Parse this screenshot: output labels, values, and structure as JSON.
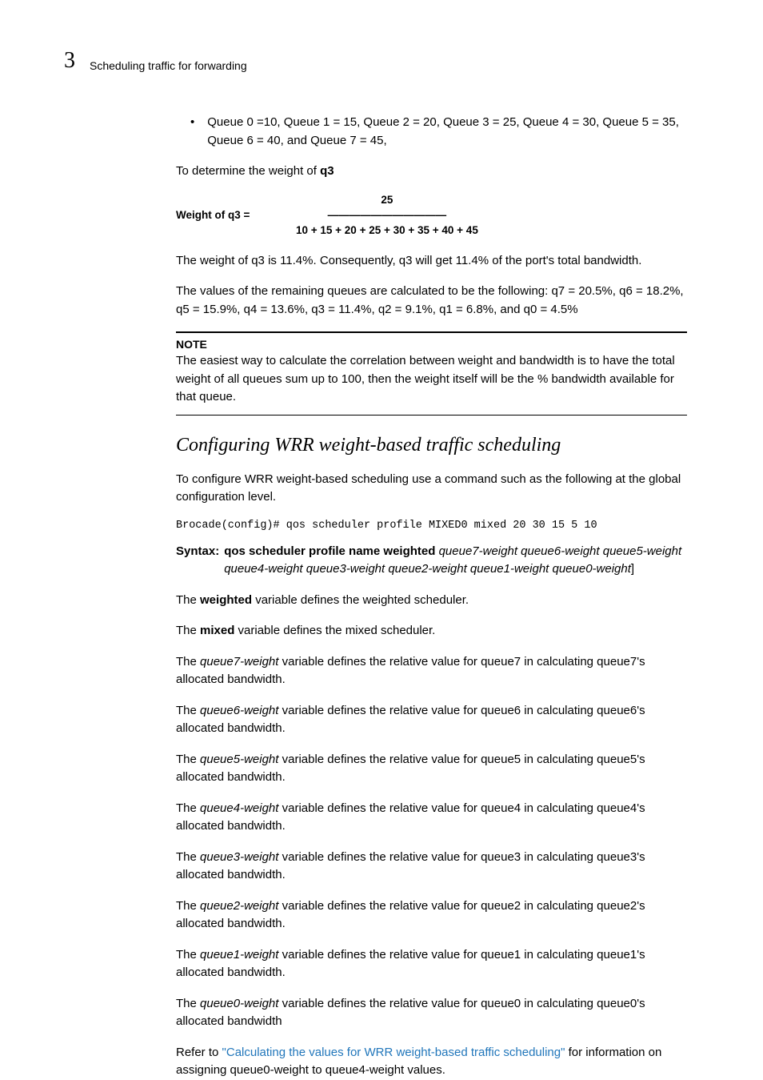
{
  "header": {
    "chapter_num": "3",
    "title": "Scheduling traffic for forwarding"
  },
  "bullet1": "Queue 0 =10, Queue 1 = 15, Queue 2 = 20, Queue 3 = 25, Queue 4 = 30, Queue 5 = 35, Queue 6 = 40, and Queue 7 = 45,",
  "determine_intro_pre": "To determine the weight of ",
  "determine_intro_q": "q3",
  "formula": {
    "label": "Weight of q3 =",
    "numerator": "25",
    "line": "———————————",
    "denom": "10 + 15 + 20 + 25 + 30 + 35 + 40 + 45"
  },
  "weight_result": "The weight of q3 is 11.4%. Consequently, q3 will get 11.4% of the port's total bandwidth.",
  "remaining_values": "The values of the remaining queues are calculated to be the following: q7 = 20.5%, q6 = 18.2%, q5 = 15.9%, q4 = 13.6%, q3 = 11.4%, q2 = 9.1%, q1 = 6.8%, and q0 = 4.5%",
  "note": {
    "title": "NOTE",
    "body": "The easiest way to calculate the correlation between weight and bandwidth is to have the total weight of all queues sum up to 100, then the weight itself will be the % bandwidth available for that queue."
  },
  "section_title": "Configuring WRR weight-based traffic scheduling",
  "config_intro": "To configure WRR weight-based scheduling use a command such as the following at the global configuration level.",
  "code_line": "Brocade(config)# qos scheduler profile MIXED0 mixed 20 30 15 5 10",
  "syntax": {
    "label": "Syntax:",
    "bold_part": " qos scheduler profile name weighted ",
    "italic_part": "queue7-weight queue6-weight queue5-weight queue4-weight queue3-weight queue2-weight queue1-weight queue0-weight",
    "tail": "]"
  },
  "p_weighted_pre": "The ",
  "p_weighted_b": "weighted",
  "p_weighted_post": " variable defines the weighted scheduler.",
  "p_mixed_pre": "The ",
  "p_mixed_b": "mixed",
  "p_mixed_post": " variable defines the mixed scheduler.",
  "q7": {
    "pre": "The ",
    "var": "queue7-weight",
    "post": " variable defines the relative value for queue7 in calculating queue7's allocated bandwidth."
  },
  "q6": {
    "pre": "The ",
    "var": "queue6-weight",
    "post": " variable defines the relative value for queue6 in calculating queue6's allocated bandwidth."
  },
  "q5": {
    "pre": "The ",
    "var": "queue5-weight",
    "post": " variable defines the relative value for queue5 in calculating queue5's allocated bandwidth."
  },
  "q4": {
    "pre": "The ",
    "var": "queue4-weight",
    "post": " variable defines the relative value for queue4 in calculating queue4's allocated bandwidth."
  },
  "q3": {
    "pre": "The ",
    "var": "queue3-weight",
    "post": " variable defines the relative value for queue3 in calculating queue3's allocated bandwidth."
  },
  "q2": {
    "pre": "The ",
    "var": "queue2-weight",
    "post": " variable defines the relative value for queue2 in calculating queue2's allocated bandwidth."
  },
  "q1": {
    "pre": "The ",
    "var": "queue1-weight",
    "post": " variable defines the relative value for queue1 in calculating queue1's allocated bandwidth."
  },
  "q0": {
    "pre": "The ",
    "var": "queue0-weight",
    "post": " variable defines the relative value for queue0 in calculating queue0's allocated bandwidth"
  },
  "refer": {
    "pre": "Refer to ",
    "link": "\"Calculating the values for WRR weight-based traffic scheduling\"",
    "post": " for information on assigning queue0-weight to queue4-weight values."
  }
}
